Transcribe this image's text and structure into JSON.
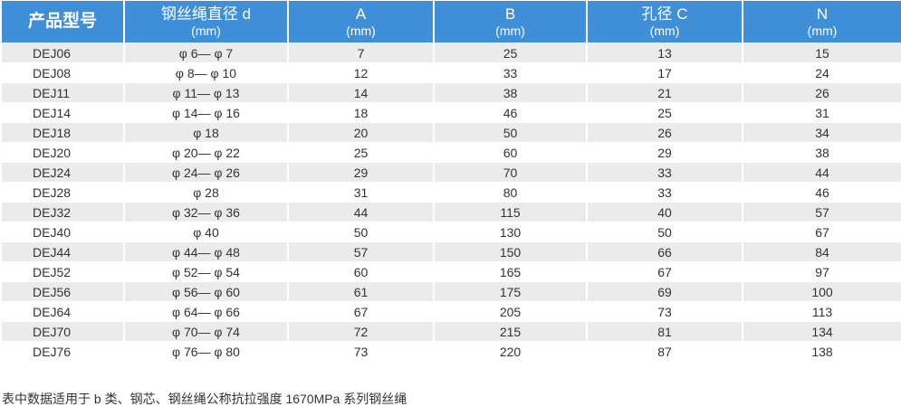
{
  "table": {
    "headers": [
      {
        "main": "产品型号",
        "unit": ""
      },
      {
        "main": "钢丝绳直径 d",
        "unit": "(mm)"
      },
      {
        "main": "A",
        "unit": "(mm)"
      },
      {
        "main": "B",
        "unit": "(mm)"
      },
      {
        "main": "孔径 C",
        "unit": "(mm)"
      },
      {
        "main": "N",
        "unit": "(mm)"
      }
    ],
    "rows": [
      [
        "DEJ06",
        "φ 6— φ 7",
        "7",
        "25",
        "13",
        "15"
      ],
      [
        "DEJ08",
        "φ 8— φ 10",
        "12",
        "33",
        "17",
        "24"
      ],
      [
        "DEJ11",
        "φ 11— φ 13",
        "14",
        "38",
        "21",
        "26"
      ],
      [
        "DEJ14",
        "φ 14— φ 16",
        "18",
        "46",
        "25",
        "31"
      ],
      [
        "DEJ18",
        "φ 18",
        "20",
        "50",
        "26",
        "34"
      ],
      [
        "DEJ20",
        "φ 20— φ 22",
        "25",
        "60",
        "29",
        "38"
      ],
      [
        "DEJ24",
        "φ 24— φ 26",
        "29",
        "70",
        "33",
        "44"
      ],
      [
        "DEJ28",
        "φ 28",
        "31",
        "80",
        "33",
        "46"
      ],
      [
        "DEJ32",
        "φ 32— φ 36",
        "44",
        "115",
        "40",
        "57"
      ],
      [
        "DEJ40",
        "φ 40",
        "50",
        "130",
        "50",
        "67"
      ],
      [
        "DEJ44",
        "φ 44— φ 48",
        "57",
        "150",
        "66",
        "84"
      ],
      [
        "DEJ52",
        "φ 52— φ 54",
        "60",
        "165",
        "67",
        "97"
      ],
      [
        "DEJ56",
        "φ 56— φ 60",
        "61",
        "175",
        "69",
        "100"
      ],
      [
        "DEJ64",
        "φ 64— φ 66",
        "67",
        "205",
        "73",
        "113"
      ],
      [
        "DEJ70",
        "φ 70— φ 74",
        "72",
        "215",
        "81",
        "134"
      ],
      [
        "DEJ76",
        "φ 76— φ 80",
        "73",
        "220",
        "87",
        "138"
      ]
    ]
  },
  "note": "表中数据适用于 b 类、钢芯、钢丝绳公称抗拉强度 1670MPa 系列钢丝绳",
  "colors": {
    "header_bg": "#3e8fd8",
    "header_text": "#ffffff",
    "row_odd": "#ebebeb",
    "row_even": "#ffffff",
    "body_text": "#333333"
  }
}
